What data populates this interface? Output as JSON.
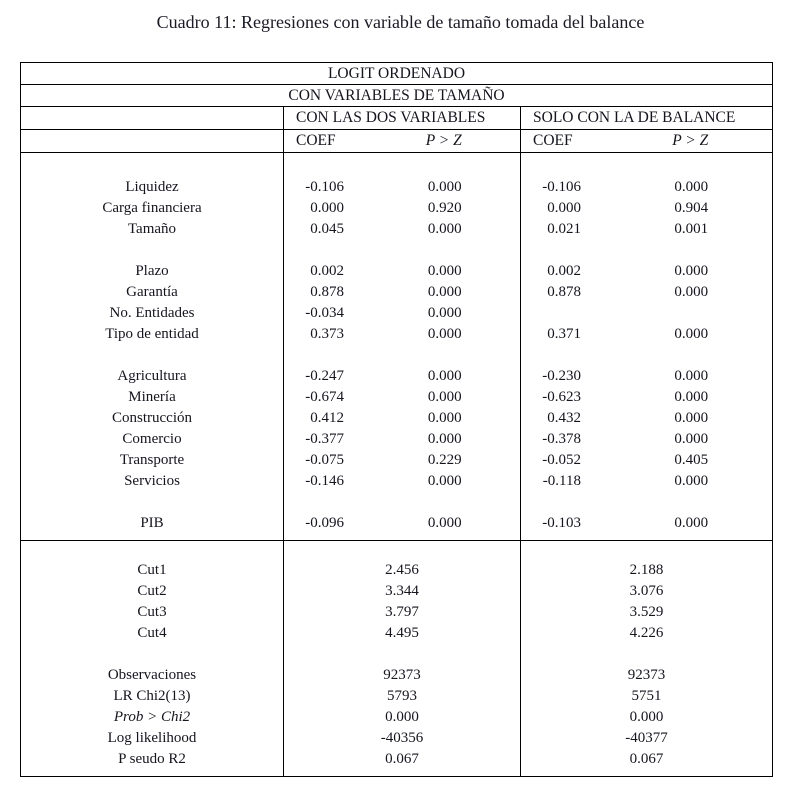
{
  "page": {
    "title": "Cuadro 11: Regresiones con variable de tamaño tomada del balance"
  },
  "table": {
    "top_header": "LOGIT ORDENADO",
    "sub_header": "CON VARIABLES DE TAMAÑO",
    "groups": [
      {
        "label": "CON LAS DOS VARIABLES"
      },
      {
        "label": "SOLO CON LA DE BALANCE"
      }
    ],
    "col_headers": {
      "coef": "COEF",
      "pz": "P > Z"
    },
    "section1_rows": [
      {
        "label": "Liquidez",
        "g1_coef": "-0.106",
        "g1_pz": "0.000",
        "g2_coef": "-0.106",
        "g2_pz": "0.000"
      },
      {
        "label": "Carga financiera",
        "g1_coef": "0.000",
        "g1_pz": "0.920",
        "g2_coef": "0.000",
        "g2_pz": "0.904"
      },
      {
        "label": "Tamaño",
        "g1_coef": "0.045",
        "g1_pz": "0.000",
        "g2_coef": "0.021",
        "g2_pz": "0.001"
      },
      {
        "blank": true
      },
      {
        "label": "Plazo",
        "g1_coef": "0.002",
        "g1_pz": "0.000",
        "g2_coef": "0.002",
        "g2_pz": "0.000"
      },
      {
        "label": "Garantía",
        "g1_coef": "0.878",
        "g1_pz": "0.000",
        "g2_coef": "0.878",
        "g2_pz": "0.000"
      },
      {
        "label": "No. Entidades",
        "g1_coef": "-0.034",
        "g1_pz": "0.000",
        "g2_coef": "",
        "g2_pz": ""
      },
      {
        "label": "Tipo de entidad",
        "g1_coef": "0.373",
        "g1_pz": "0.000",
        "g2_coef": "0.371",
        "g2_pz": "0.000"
      },
      {
        "blank": true
      },
      {
        "label": "Agricultura",
        "g1_coef": "-0.247",
        "g1_pz": "0.000",
        "g2_coef": "-0.230",
        "g2_pz": "0.000"
      },
      {
        "label": "Minería",
        "g1_coef": "-0.674",
        "g1_pz": "0.000",
        "g2_coef": "-0.623",
        "g2_pz": "0.000"
      },
      {
        "label": "Construcción",
        "g1_coef": "0.412",
        "g1_pz": "0.000",
        "g2_coef": "0.432",
        "g2_pz": "0.000"
      },
      {
        "label": "Comercio",
        "g1_coef": "-0.377",
        "g1_pz": "0.000",
        "g2_coef": "-0.378",
        "g2_pz": "0.000"
      },
      {
        "label": "Transporte",
        "g1_coef": "-0.075",
        "g1_pz": "0.229",
        "g2_coef": "-0.052",
        "g2_pz": "0.405"
      },
      {
        "label": "Servicios",
        "g1_coef": "-0.146",
        "g1_pz": "0.000",
        "g2_coef": "-0.118",
        "g2_pz": "0.000"
      },
      {
        "blank": true
      },
      {
        "label": "PIB",
        "g1_coef": "-0.096",
        "g1_pz": "0.000",
        "g2_coef": "-0.103",
        "g2_pz": "0.000"
      }
    ],
    "section2_rows": [
      {
        "label": "Cut1",
        "g1": "2.456",
        "g2": "2.188"
      },
      {
        "label": "Cut2",
        "g1": "3.344",
        "g2": "3.076"
      },
      {
        "label": "Cut3",
        "g1": "3.797",
        "g2": "3.529"
      },
      {
        "label": "Cut4",
        "g1": "4.495",
        "g2": "4.226"
      },
      {
        "blank": true
      },
      {
        "label": "Observaciones",
        "g1": "92373",
        "g2": "92373"
      },
      {
        "label": "LR Chi2(13)",
        "g1": "5793",
        "g2": "5751"
      },
      {
        "label": "Prob > Chi2",
        "g1": "0.000",
        "g2": "0.000",
        "italic": true
      },
      {
        "label": "Log likelihood",
        "g1": "-40356",
        "g2": "-40377"
      },
      {
        "label": "P seudo R2",
        "g1": "0.067",
        "g2": "0.067"
      }
    ]
  }
}
